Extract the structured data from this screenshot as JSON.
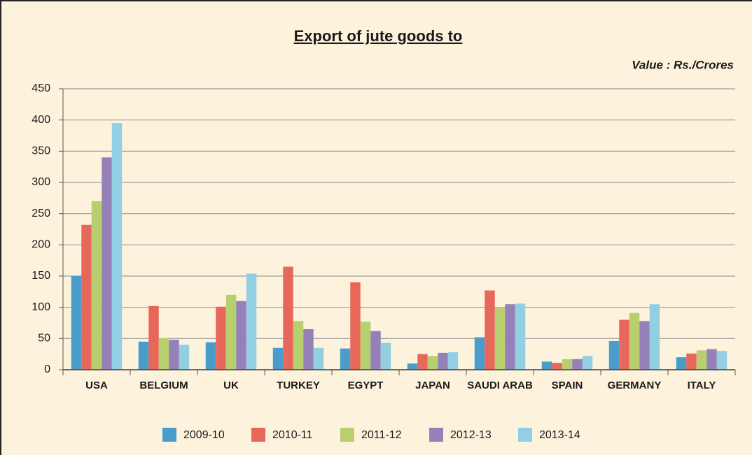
{
  "chart_data": {
    "type": "bar",
    "title": "Export of jute goods to",
    "subtitle": "Value : Rs./Crores",
    "categories": [
      "USA",
      "BELGIUM",
      "UK",
      "TURKEY",
      "EGYPT",
      "JAPAN",
      "SAUDI ARAB",
      "SPAIN",
      "GERMANY",
      "ITALY"
    ],
    "series": [
      {
        "name": "2009-10",
        "color": "#4a9ccb",
        "values": [
          150,
          45,
          44,
          35,
          34,
          10,
          52,
          13,
          46,
          20
        ]
      },
      {
        "name": "2010-11",
        "color": "#e8675b",
        "values": [
          232,
          102,
          101,
          165,
          140,
          25,
          127,
          11,
          80,
          26
        ]
      },
      {
        "name": "2011-12",
        "color": "#b8cf6f",
        "values": [
          270,
          51,
          120,
          78,
          77,
          22,
          99,
          17,
          91,
          31
        ]
      },
      {
        "name": "2012-13",
        "color": "#9481b8",
        "values": [
          340,
          48,
          110,
          65,
          62,
          27,
          105,
          17,
          78,
          33
        ]
      },
      {
        "name": "2013-14",
        "color": "#92cfe3",
        "values": [
          395,
          40,
          154,
          35,
          43,
          28,
          106,
          22,
          105,
          30
        ]
      }
    ],
    "ylim": [
      0,
      450
    ],
    "yticks": [
      0,
      50,
      100,
      150,
      200,
      250,
      300,
      350,
      400,
      450
    ],
    "grid": true,
    "legend": "bottom"
  }
}
